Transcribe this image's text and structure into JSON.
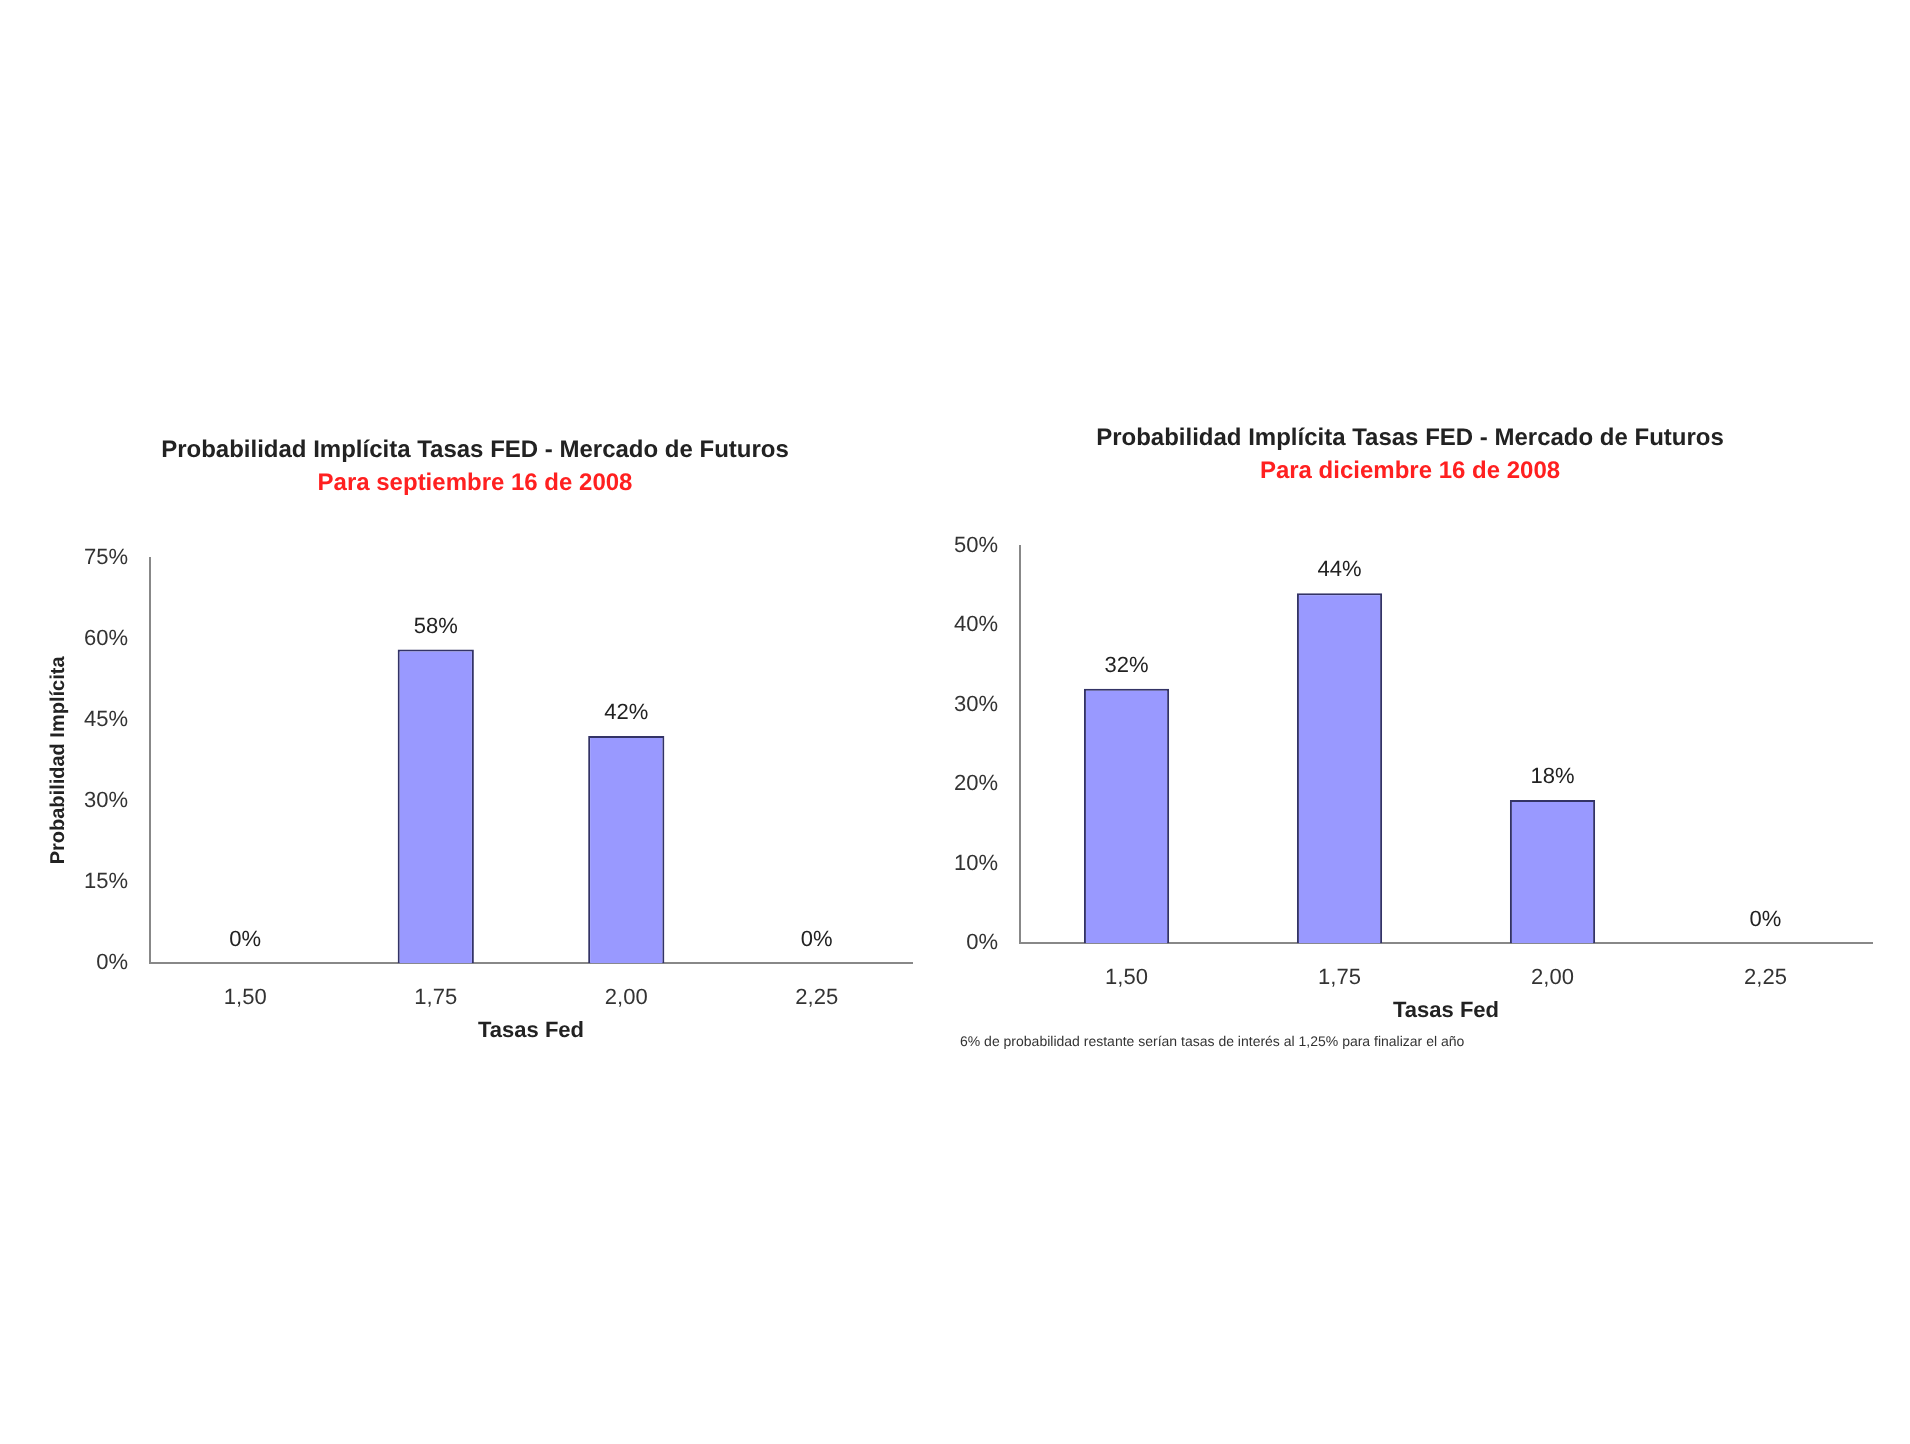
{
  "chart_data": [
    {
      "type": "bar",
      "title": "Probabilidad Implícita Tasas FED - Mercado de Futuros",
      "subtitle": "Para septiembre 16 de 2008",
      "xlabel": "Tasas Fed",
      "ylabel": "Probabilidad Implícita",
      "categories": [
        "1,50",
        "1,75",
        "2,00",
        "2,25"
      ],
      "values": [
        0,
        58,
        42,
        0
      ],
      "value_labels": [
        "0%",
        "58%",
        "42%",
        "0%"
      ],
      "color": "#9999ff",
      "ylim": [
        0,
        75
      ],
      "yticks": [
        {
          "value": 0,
          "label": "0%"
        },
        {
          "value": 15,
          "label": "15%"
        },
        {
          "value": 30,
          "label": "30%"
        },
        {
          "value": 45,
          "label": "45%"
        },
        {
          "value": 60,
          "label": "60%"
        },
        {
          "value": 75,
          "label": "75%"
        }
      ],
      "grid": false,
      "legend": false
    },
    {
      "type": "bar",
      "title": "Probabilidad Implícita Tasas FED - Mercado de Futuros",
      "subtitle": "Para diciembre 16 de 2008",
      "xlabel": "Tasas Fed",
      "categories": [
        "1,50",
        "1,75",
        "2,00",
        "2,25"
      ],
      "values": [
        32,
        44,
        18,
        0
      ],
      "value_labels": [
        "32%",
        "44%",
        "18%",
        "0%"
      ],
      "color": "#9999ff",
      "ylim": [
        0,
        50
      ],
      "yticks": [
        {
          "value": 0,
          "label": "0%"
        },
        {
          "value": 10,
          "label": "10%"
        },
        {
          "value": 20,
          "label": "20%"
        },
        {
          "value": 30,
          "label": "30%"
        },
        {
          "value": 40,
          "label": "40%"
        },
        {
          "value": 50,
          "label": "50%"
        }
      ],
      "grid": false,
      "legend": false,
      "annotations": [
        "6% de probabilidad restante serían tasas de interés al 1,25% para finalizar el año"
      ]
    }
  ]
}
